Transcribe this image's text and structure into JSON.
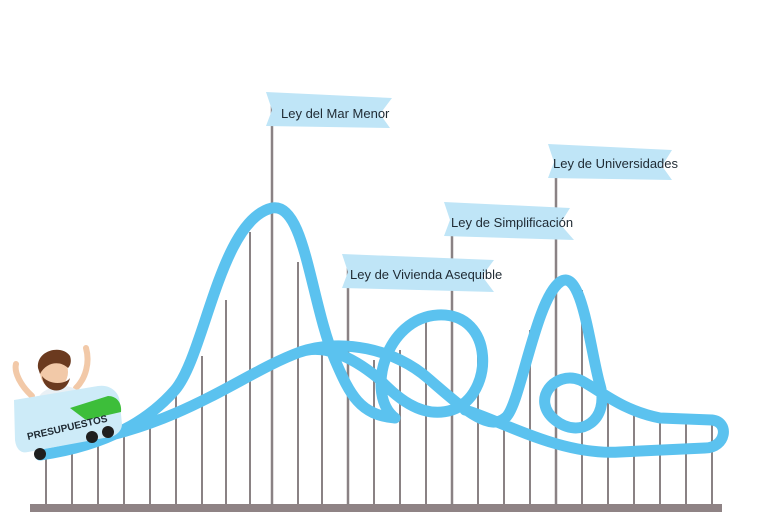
{
  "flags": [
    {
      "id": "mar-menor",
      "label": "Ley del  Mar Menor"
    },
    {
      "id": "universidades",
      "label": "Ley de Universidades"
    },
    {
      "id": "simplificacion",
      "label": "Ley de Simplificación"
    },
    {
      "id": "vivienda",
      "label": "Ley de Vivienda Asequible"
    }
  ],
  "cart": {
    "label": "PRESUPUESTOS"
  },
  "colors": {
    "track": "#5BC2EF",
    "flag": "#BFE5F7",
    "pole": "#8A8284",
    "ground": "#8F8385",
    "cart_green": "#3DBE3A",
    "cart_body": "#CDEBF8"
  }
}
